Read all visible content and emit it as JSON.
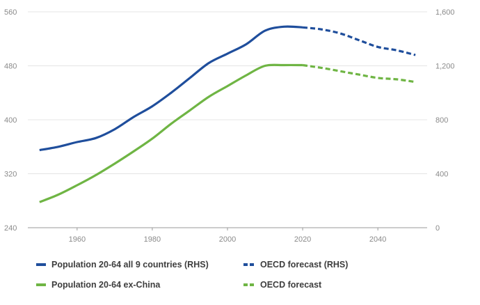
{
  "chart_data": {
    "type": "line",
    "title": "",
    "xlabel": "",
    "ylabel_left": "",
    "ylabel_right": "",
    "xlim": [
      1948,
      2052
    ],
    "x_ticks": [
      1960,
      1980,
      2000,
      2020,
      2040
    ],
    "left_axis": {
      "ylim": [
        240,
        560
      ],
      "ticks": [
        "240",
        "320",
        "400",
        "480",
        "560"
      ]
    },
    "right_axis": {
      "ylim": [
        0,
        1600
      ],
      "ticks": [
        "0",
        "400",
        "800",
        "1,200",
        "1,600"
      ]
    },
    "grid": "horizontal",
    "legend_position": "bottom",
    "series": [
      {
        "name": "Population 20-64 all 9 countries (RHS)",
        "axis": "right",
        "color": "#1f4e9c",
        "style": "solid",
        "points": [
          [
            1950,
            575
          ],
          [
            1955,
            600
          ],
          [
            1960,
            635
          ],
          [
            1965,
            665
          ],
          [
            1970,
            730
          ],
          [
            1975,
            820
          ],
          [
            1980,
            900
          ],
          [
            1985,
            1000
          ],
          [
            1990,
            1110
          ],
          [
            1995,
            1220
          ],
          [
            2000,
            1290
          ],
          [
            2005,
            1360
          ],
          [
            2010,
            1460
          ],
          [
            2015,
            1490
          ],
          [
            2020,
            1485
          ]
        ]
      },
      {
        "name": "OECD forecast (RHS)",
        "axis": "right",
        "color": "#1f4e9c",
        "style": "dashed",
        "points": [
          [
            2020,
            1485
          ],
          [
            2025,
            1470
          ],
          [
            2030,
            1440
          ],
          [
            2035,
            1390
          ],
          [
            2040,
            1340
          ],
          [
            2045,
            1315
          ],
          [
            2050,
            1280
          ]
        ]
      },
      {
        "name": "Population 20-64 ex-China",
        "axis": "left",
        "color": "#6fb544",
        "style": "solid",
        "points": [
          [
            1950,
            278
          ],
          [
            1955,
            289
          ],
          [
            1960,
            303
          ],
          [
            1965,
            318
          ],
          [
            1970,
            335
          ],
          [
            1975,
            353
          ],
          [
            1980,
            372
          ],
          [
            1985,
            394
          ],
          [
            1990,
            414
          ],
          [
            1995,
            434
          ],
          [
            2000,
            450
          ],
          [
            2005,
            466
          ],
          [
            2010,
            480
          ],
          [
            2015,
            481
          ],
          [
            2020,
            481
          ]
        ]
      },
      {
        "name": "OECD forecast",
        "axis": "left",
        "color": "#6fb544",
        "style": "dashed",
        "points": [
          [
            2020,
            481
          ],
          [
            2025,
            477
          ],
          [
            2030,
            472
          ],
          [
            2035,
            467
          ],
          [
            2040,
            462
          ],
          [
            2045,
            460
          ],
          [
            2050,
            456
          ]
        ]
      }
    ]
  }
}
